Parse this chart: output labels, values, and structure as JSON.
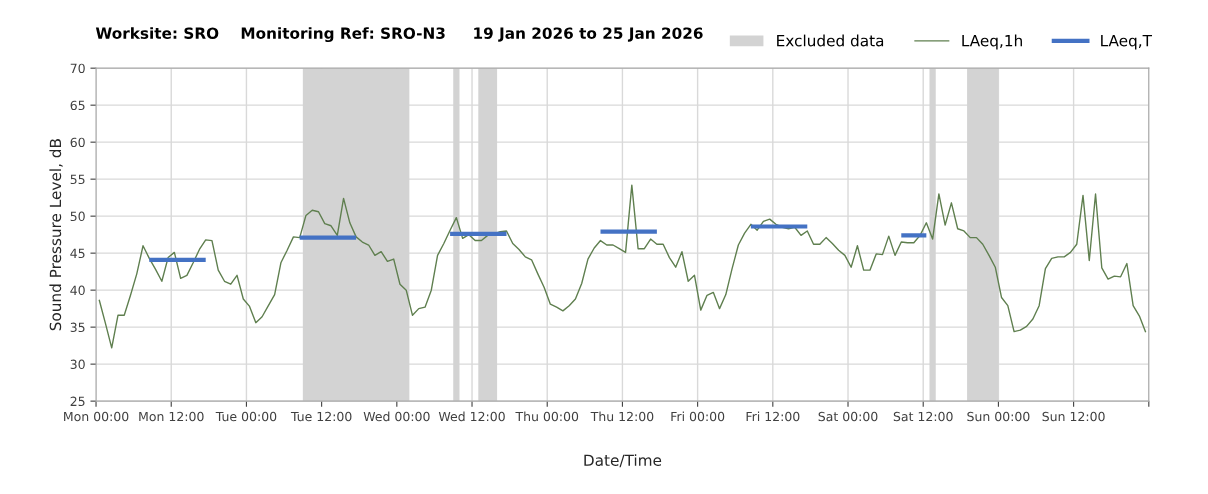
{
  "chart_data": {
    "type": "line",
    "title": "Worksite: SRO    Monitoring Ref: SRO-N3     19 Jan 2026 to 25 Jan 2026",
    "xlabel": "Date/Time",
    "ylabel": "Sound Pressure Level, dB",
    "xlim": [
      "2026-01-19T00:00",
      "2026-01-26T00:00"
    ],
    "ylim": [
      25,
      70
    ],
    "xticks": [
      {
        "value": "2026-01-19T00:00",
        "label": "Mon 00:00"
      },
      {
        "value": "2026-01-19T12:00",
        "label": "Mon 12:00"
      },
      {
        "value": "2026-01-20T00:00",
        "label": "Tue 00:00"
      },
      {
        "value": "2026-01-20T12:00",
        "label": "Tue 12:00"
      },
      {
        "value": "2026-01-21T00:00",
        "label": "Wed 00:00"
      },
      {
        "value": "2026-01-21T12:00",
        "label": "Wed 12:00"
      },
      {
        "value": "2026-01-22T00:00",
        "label": "Thu 00:00"
      },
      {
        "value": "2026-01-22T12:00",
        "label": "Thu 12:00"
      },
      {
        "value": "2026-01-23T00:00",
        "label": "Fri 00:00"
      },
      {
        "value": "2026-01-23T12:00",
        "label": "Fri 12:00"
      },
      {
        "value": "2026-01-24T00:00",
        "label": "Sat 00:00"
      },
      {
        "value": "2026-01-24T12:00",
        "label": "Sat 12:00"
      },
      {
        "value": "2026-01-25T00:00",
        "label": "Sun 00:00"
      },
      {
        "value": "2026-01-25T12:00",
        "label": "Sun 12:00"
      },
      {
        "value": "2026-01-26T00:00",
        "label": null
      }
    ],
    "yticks": [
      25,
      30,
      35,
      40,
      45,
      50,
      55,
      60,
      65,
      70
    ],
    "grid": true,
    "legend": "top right",
    "bands": [
      {
        "axis": "x",
        "from": "2026-01-20T09:00",
        "to": "2026-01-21T02:00",
        "label": "Excluded data",
        "color": "#d3d3d3"
      },
      {
        "axis": "x",
        "from": "2026-01-21T09:00",
        "to": "2026-01-21T10:00",
        "color": "#d3d3d3"
      },
      {
        "axis": "x",
        "from": "2026-01-21T13:00",
        "to": "2026-01-21T16:00",
        "color": "#d3d3d3"
      },
      {
        "axis": "x",
        "from": "2026-01-24T13:00",
        "to": "2026-01-24T14:00",
        "color": "#d3d3d3"
      },
      {
        "axis": "x",
        "from": "2026-01-24T19:00",
        "to": "2026-01-25T00:00",
        "color": "#d3d3d3"
      }
    ],
    "series": [
      {
        "name": "LAeq,1h",
        "color": "#5f7f4f",
        "x": [
          "2026-01-19T00:30",
          "2026-01-19T01:30",
          "2026-01-19T02:30",
          "2026-01-19T03:30",
          "2026-01-19T04:30",
          "2026-01-19T05:30",
          "2026-01-19T06:30",
          "2026-01-19T07:30",
          "2026-01-19T08:30",
          "2026-01-19T09:30",
          "2026-01-19T10:30",
          "2026-01-19T11:30",
          "2026-01-19T12:30",
          "2026-01-19T13:30",
          "2026-01-19T14:30",
          "2026-01-19T15:30",
          "2026-01-19T16:30",
          "2026-01-19T17:30",
          "2026-01-19T18:30",
          "2026-01-19T19:30",
          "2026-01-19T20:30",
          "2026-01-19T21:30",
          "2026-01-19T22:30",
          "2026-01-19T23:30",
          "2026-01-20T00:30",
          "2026-01-20T01:30",
          "2026-01-20T02:30",
          "2026-01-20T03:30",
          "2026-01-20T04:30",
          "2026-01-20T05:30",
          "2026-01-20T06:30",
          "2026-01-20T07:30",
          "2026-01-20T08:30",
          "2026-01-20T09:30",
          "2026-01-20T10:30",
          "2026-01-20T11:30",
          "2026-01-20T12:30",
          "2026-01-20T13:30",
          "2026-01-20T14:30",
          "2026-01-20T15:30",
          "2026-01-20T16:30",
          "2026-01-20T17:30",
          "2026-01-20T18:30",
          "2026-01-20T19:30",
          "2026-01-20T20:30",
          "2026-01-20T21:30",
          "2026-01-20T22:30",
          "2026-01-20T23:30",
          "2026-01-21T00:30",
          "2026-01-21T01:30",
          "2026-01-21T02:30",
          "2026-01-21T03:30",
          "2026-01-21T04:30",
          "2026-01-21T05:30",
          "2026-01-21T06:30",
          "2026-01-21T07:30",
          "2026-01-21T08:30",
          "2026-01-21T09:30",
          "2026-01-21T10:30",
          "2026-01-21T11:30",
          "2026-01-21T12:30",
          "2026-01-21T13:30",
          "2026-01-21T14:30",
          "2026-01-21T15:30",
          "2026-01-21T16:30",
          "2026-01-21T17:30",
          "2026-01-21T18:30",
          "2026-01-21T19:30",
          "2026-01-21T20:30",
          "2026-01-21T21:30",
          "2026-01-21T22:30",
          "2026-01-21T23:30",
          "2026-01-22T00:30",
          "2026-01-22T01:30",
          "2026-01-22T02:30",
          "2026-01-22T03:30",
          "2026-01-22T04:30",
          "2026-01-22T05:30",
          "2026-01-22T06:30",
          "2026-01-22T07:30",
          "2026-01-22T08:30",
          "2026-01-22T09:30",
          "2026-01-22T10:30",
          "2026-01-22T11:30",
          "2026-01-22T12:30",
          "2026-01-22T13:30",
          "2026-01-22T14:30",
          "2026-01-22T15:30",
          "2026-01-22T16:30",
          "2026-01-22T17:30",
          "2026-01-22T18:30",
          "2026-01-22T19:30",
          "2026-01-22T20:30",
          "2026-01-22T21:30",
          "2026-01-22T22:30",
          "2026-01-22T23:30",
          "2026-01-23T00:30",
          "2026-01-23T01:30",
          "2026-01-23T02:30",
          "2026-01-23T03:30",
          "2026-01-23T04:30",
          "2026-01-23T05:30",
          "2026-01-23T06:30",
          "2026-01-23T07:30",
          "2026-01-23T08:30",
          "2026-01-23T09:30",
          "2026-01-23T10:30",
          "2026-01-23T11:30",
          "2026-01-23T12:30",
          "2026-01-23T13:30",
          "2026-01-23T14:30",
          "2026-01-23T15:30",
          "2026-01-23T16:30",
          "2026-01-23T17:30",
          "2026-01-23T18:30",
          "2026-01-23T19:30",
          "2026-01-23T20:30",
          "2026-01-23T21:30",
          "2026-01-23T22:30",
          "2026-01-23T23:30",
          "2026-01-24T00:30",
          "2026-01-24T01:30",
          "2026-01-24T02:30",
          "2026-01-24T03:30",
          "2026-01-24T04:30",
          "2026-01-24T05:30",
          "2026-01-24T06:30",
          "2026-01-24T07:30",
          "2026-01-24T08:30",
          "2026-01-24T09:30",
          "2026-01-24T10:30",
          "2026-01-24T11:30",
          "2026-01-24T12:30",
          "2026-01-24T13:30",
          "2026-01-24T14:30",
          "2026-01-24T15:30",
          "2026-01-24T16:30",
          "2026-01-24T17:30",
          "2026-01-24T18:30",
          "2026-01-24T19:30",
          "2026-01-24T20:30",
          "2026-01-24T21:30",
          "2026-01-24T22:30",
          "2026-01-24T23:30",
          "2026-01-25T00:30",
          "2026-01-25T01:30",
          "2026-01-25T02:30",
          "2026-01-25T03:30",
          "2026-01-25T04:30",
          "2026-01-25T05:30",
          "2026-01-25T06:30",
          "2026-01-25T07:30",
          "2026-01-25T08:30",
          "2026-01-25T09:30",
          "2026-01-25T10:30",
          "2026-01-25T11:30",
          "2026-01-25T12:30",
          "2026-01-25T13:30",
          "2026-01-25T14:30",
          "2026-01-25T15:30",
          "2026-01-25T16:30",
          "2026-01-25T17:30",
          "2026-01-25T18:30",
          "2026-01-25T19:30",
          "2026-01-25T20:30",
          "2026-01-25T21:30",
          "2026-01-25T22:30",
          "2026-01-25T23:30"
        ],
        "values": [
          38.7,
          35.5,
          32.2,
          36.6,
          36.6,
          39.3,
          42.2,
          46.0,
          44.3,
          42.8,
          41.2,
          44.4,
          45.1,
          41.6,
          42.0,
          43.7,
          45.5,
          46.8,
          46.7,
          42.7,
          41.2,
          40.8,
          42.0,
          38.8,
          37.8,
          35.6,
          36.4,
          37.9,
          39.4,
          43.7,
          45.4,
          47.2,
          47.1,
          50.1,
          50.8,
          50.6,
          49.0,
          48.7,
          47.4,
          52.4,
          49.1,
          47.2,
          46.5,
          46.1,
          44.7,
          45.2,
          43.9,
          44.2,
          40.8,
          40.0,
          36.6,
          37.5,
          37.7,
          40.0,
          44.7,
          46.3,
          48.1,
          49.8,
          47.0,
          47.5,
          46.7,
          46.7,
          47.4,
          47.6,
          47.9,
          48.0,
          46.3,
          45.5,
          44.5,
          44.1,
          42.2,
          40.4,
          38.1,
          37.7,
          37.2,
          37.9,
          38.8,
          40.9,
          44.2,
          45.7,
          46.7,
          46.1,
          46.1,
          45.6,
          45.1,
          54.2,
          45.6,
          45.6,
          46.9,
          46.2,
          46.2,
          44.4,
          43.1,
          45.2,
          41.2,
          42.0,
          37.3,
          39.3,
          39.7,
          37.5,
          39.4,
          42.9,
          46.1,
          47.7,
          48.9,
          48.1,
          49.3,
          49.6,
          48.9,
          48.5,
          48.3,
          48.5,
          47.4,
          48.0,
          46.2,
          46.2,
          47.1,
          46.3,
          45.4,
          44.7,
          43.1,
          46.0,
          42.7,
          42.7,
          44.9,
          44.8,
          47.3,
          44.7,
          46.5,
          46.4,
          46.4,
          47.4,
          49.1,
          46.9,
          53.0,
          48.8,
          51.8,
          48.3,
          48.0,
          47.1,
          47.1,
          46.2,
          44.7,
          43.1,
          39.0,
          37.9,
          34.4,
          34.6,
          35.1,
          36.1,
          37.9,
          42.9,
          44.3,
          44.5,
          44.5,
          45.1,
          46.2,
          52.8,
          44.0,
          53.0,
          43.0,
          41.5,
          41.9,
          41.8,
          43.6,
          37.9,
          36.5,
          34.3
        ]
      },
      {
        "name": "LAeq,T",
        "color": "#4472c4",
        "x": [
          "2026-01-19T08:30",
          "2026-01-19T17:30"
        ],
        "values": [
          44.1,
          44.1
        ]
      },
      {
        "color": "#4472c4",
        "x": [
          "2026-01-20T08:30",
          "2026-01-20T17:30"
        ],
        "values": [
          47.1,
          47.1
        ]
      },
      {
        "color": "#4472c4",
        "x": [
          "2026-01-21T08:30",
          "2026-01-21T17:30"
        ],
        "values": [
          47.6,
          47.6
        ]
      },
      {
        "color": "#4472c4",
        "x": [
          "2026-01-22T08:30",
          "2026-01-22T17:30"
        ],
        "values": [
          47.9,
          47.9
        ]
      },
      {
        "color": "#4472c4",
        "x": [
          "2026-01-23T08:30",
          "2026-01-23T17:30"
        ],
        "values": [
          48.6,
          48.6
        ]
      },
      {
        "color": "#4472c4",
        "x": [
          "2026-01-24T08:30",
          "2026-01-24T12:30"
        ],
        "values": [
          47.4,
          47.4
        ]
      }
    ]
  }
}
